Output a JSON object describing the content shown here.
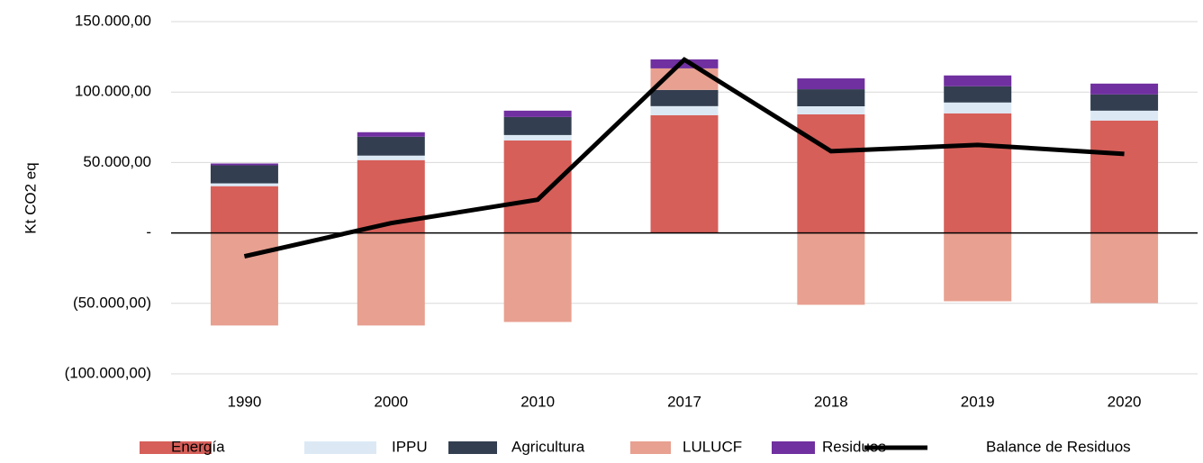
{
  "chart_data": {
    "type": "bar",
    "y_axis_label": "Kt CO2 eq",
    "categories": [
      "1990",
      "2000",
      "2010",
      "2017",
      "2018",
      "2019",
      "2020"
    ],
    "series": [
      {
        "name": "Energía",
        "color": "#d65f59",
        "values": [
          33200,
          51700,
          65700,
          83600,
          84200,
          84900,
          79800
        ]
      },
      {
        "name": "IPPU",
        "color": "#dce9f5",
        "values": [
          2000,
          3200,
          3800,
          6400,
          5700,
          7700,
          7000
        ]
      },
      {
        "name": "Agricultura",
        "color": "#333f50",
        "values": [
          12800,
          13400,
          12800,
          11500,
          12100,
          11500,
          11500
        ]
      },
      {
        "name": "LULUCF",
        "color": "#e8a090",
        "values": [
          -65700,
          -65700,
          -63200,
          15300,
          -51000,
          -48500,
          -49800
        ]
      },
      {
        "name": "Residuos",
        "color": "#7030a0",
        "values": [
          1300,
          3200,
          4500,
          6400,
          7700,
          7700,
          7700
        ]
      },
      {
        "name": "Balance de Residuos",
        "color": "#000000",
        "type": "line",
        "values": [
          -16600,
          7000,
          23600,
          123000,
          58000,
          62500,
          56100
        ]
      }
    ],
    "ylim": [
      -100000,
      150000
    ],
    "yticks": [
      {
        "value": -100000,
        "label": "(100.000,00)"
      },
      {
        "value": -50000,
        "label": "(50.000,00)"
      },
      {
        "value": 0,
        "label": "-"
      },
      {
        "value": 50000,
        "label": "50.000,00"
      },
      {
        "value": 100000,
        "label": "100.000,00"
      },
      {
        "value": 150000,
        "label": "150.000,00"
      }
    ],
    "grid": true
  }
}
